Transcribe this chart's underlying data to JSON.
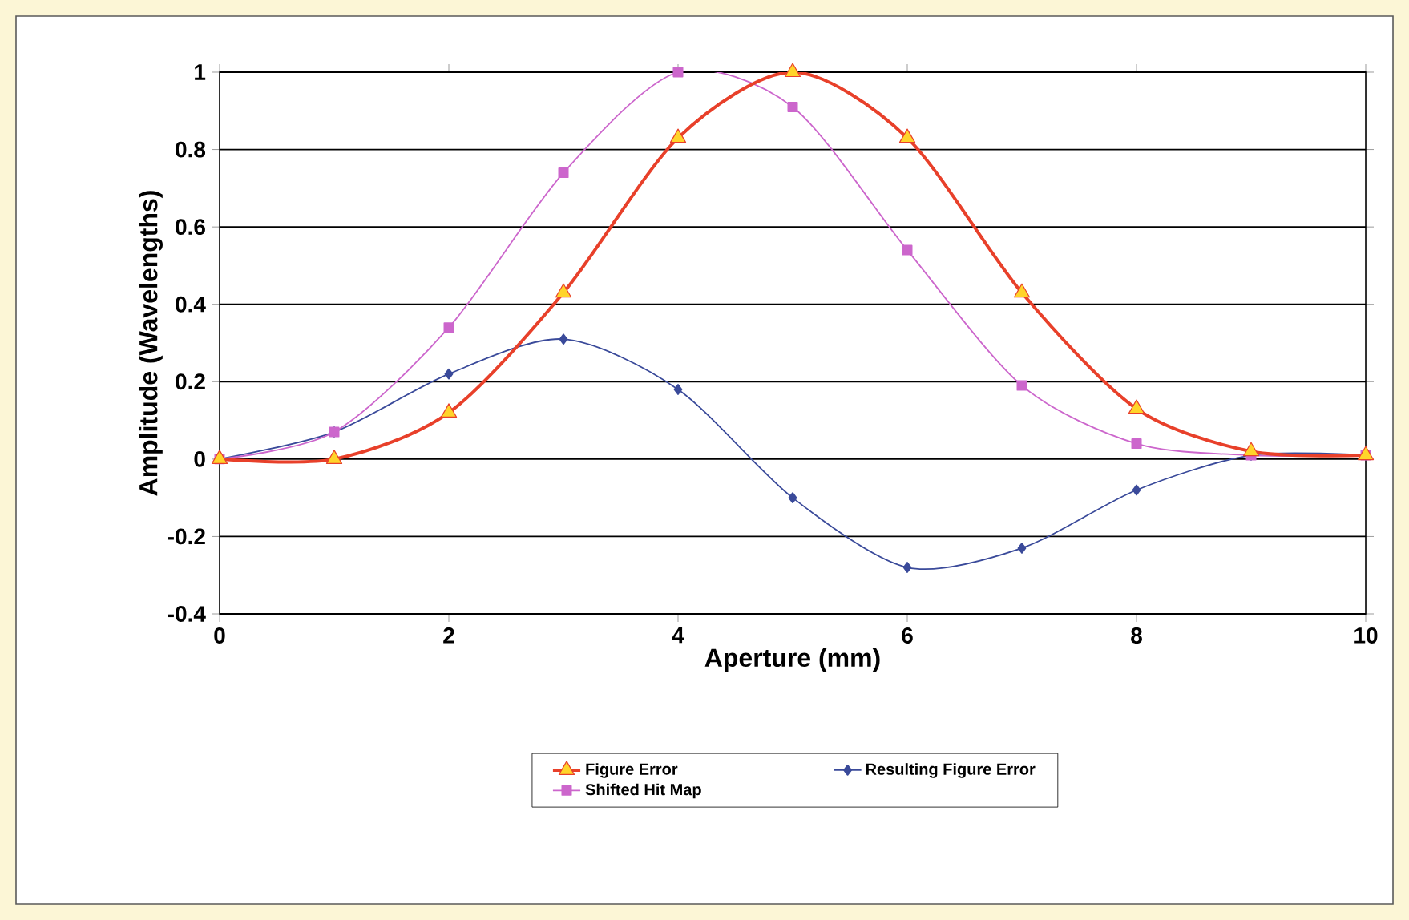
{
  "chart_data": {
    "type": "line",
    "xlabel": "Aperture (mm)",
    "ylabel": "Amplitude (Wavelengths)",
    "x": [
      0,
      1,
      2,
      3,
      4,
      5,
      6,
      7,
      8,
      9,
      10
    ],
    "series": [
      {
        "name": "Figure Error",
        "color": "#e8402a",
        "marker": "triangle",
        "values": [
          0,
          0,
          0.12,
          0.43,
          0.83,
          1.0,
          0.83,
          0.43,
          0.13,
          0.02,
          0.01
        ]
      },
      {
        "name": "Resulting Figure Error",
        "color": "#3a4a9a",
        "marker": "diamond",
        "values": [
          0,
          0.07,
          0.22,
          0.31,
          0.18,
          -0.1,
          -0.28,
          -0.23,
          -0.08,
          0.01,
          0.01
        ]
      },
      {
        "name": "Shifted Hit Map",
        "color": "#cc66cc",
        "marker": "square",
        "values": [
          0,
          0.07,
          0.34,
          0.74,
          1.0,
          0.91,
          0.54,
          0.19,
          0.04,
          0.01,
          0.01
        ]
      }
    ],
    "xlim": [
      0,
      10
    ],
    "xticks": [
      0,
      2,
      4,
      6,
      8,
      10
    ],
    "ylim": [
      -0.4,
      1
    ],
    "yticks": [
      -0.4,
      -0.2,
      0,
      0.2,
      0.4,
      0.6,
      0.8,
      1
    ],
    "grid": "y",
    "legend": "bottom",
    "line_style": "solid"
  }
}
